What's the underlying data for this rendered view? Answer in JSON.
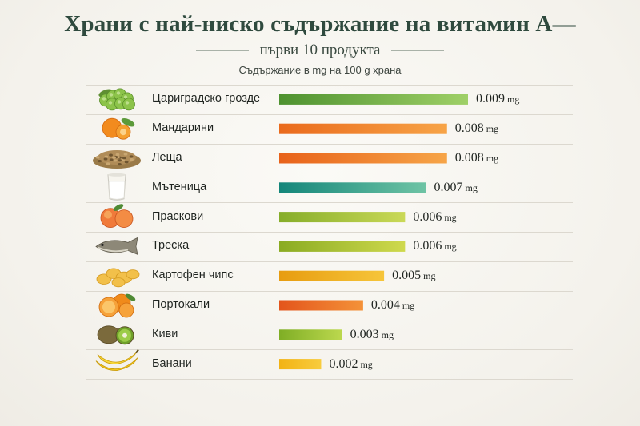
{
  "title": "Храни с най-ниско съдържание на витамин А—",
  "subtitle": "първи 10 продукта",
  "note": "Съдържание в mg на 100 g храна",
  "unit": "mg",
  "chart_data": {
    "type": "bar",
    "orientation": "horizontal",
    "categories": [
      "Цариградско грозде",
      "Мандарини",
      "Леща",
      "Мътеница",
      "Праскови",
      "Треска",
      "Картофен чипс",
      "Портокали",
      "Киви",
      "Банани"
    ],
    "values": [
      0.009,
      0.008,
      0.008,
      0.007,
      0.006,
      0.006,
      0.005,
      0.004,
      0.003,
      0.002
    ],
    "value_labels": [
      "0.009",
      "0.008",
      "0.008",
      "0.007",
      "0.006",
      "0.006",
      "0.005",
      "0.004",
      "0.003",
      "0.002"
    ],
    "xlim": [
      0,
      0.009
    ],
    "bar_colors": [
      [
        "#4e9230",
        "#9fd067"
      ],
      [
        "#ea6a1c",
        "#f7a447"
      ],
      [
        "#e8621a",
        "#f6a548"
      ],
      [
        "#14867a",
        "#6fc4a5"
      ],
      [
        "#86ad2a",
        "#cad957"
      ],
      [
        "#8aab22",
        "#cfd94d"
      ],
      [
        "#e79c10",
        "#f6c53a"
      ],
      [
        "#e3551c",
        "#f49238"
      ],
      [
        "#7fae25",
        "#bcd84e"
      ],
      [
        "#f2b314",
        "#f8cc3e"
      ]
    ],
    "icons": [
      "gooseberry-icon",
      "mandarin-icon",
      "lentils-icon",
      "buttermilk-icon",
      "peach-icon",
      "cod-icon",
      "potato-chips-icon",
      "orange-icon",
      "kiwi-icon",
      "banana-icon"
    ]
  }
}
